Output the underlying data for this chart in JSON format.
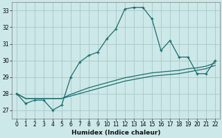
{
  "xlabel": "Humidex (Indice chaleur)",
  "background_color": "#cde8e8",
  "grid_color": "#aacccc",
  "line_color": "#1a6b6b",
  "xlim": [
    -0.5,
    22.5
  ],
  "ylim": [
    26.5,
    33.5
  ],
  "yticks": [
    27,
    28,
    29,
    30,
    31,
    32,
    33
  ],
  "xticks": [
    0,
    1,
    2,
    3,
    4,
    5,
    6,
    7,
    8,
    9,
    10,
    11,
    12,
    13,
    14,
    15,
    16,
    17,
    18,
    19,
    20,
    21,
    22
  ],
  "main_x": [
    0,
    1,
    2,
    3,
    4,
    5,
    6,
    7,
    8,
    9,
    10,
    11,
    12,
    13,
    14,
    15,
    16,
    17,
    18,
    19,
    20,
    21,
    22
  ],
  "main_y": [
    28.0,
    27.4,
    27.6,
    27.6,
    27.0,
    27.3,
    29.0,
    29.9,
    30.3,
    30.5,
    31.3,
    31.9,
    33.1,
    33.2,
    33.2,
    32.5,
    30.6,
    31.2,
    30.2,
    30.2,
    29.2,
    29.2,
    30.0
  ],
  "line2_x": [
    0,
    1,
    2,
    3,
    4,
    5,
    6,
    7,
    8,
    9,
    10,
    11,
    12,
    13,
    14,
    15,
    16,
    17,
    18,
    19,
    20,
    21,
    22
  ],
  "line2_y": [
    28.0,
    27.7,
    27.7,
    27.7,
    27.7,
    27.7,
    27.85,
    28.0,
    28.15,
    28.3,
    28.45,
    28.6,
    28.75,
    28.85,
    28.95,
    29.05,
    29.1,
    29.15,
    29.2,
    29.3,
    29.4,
    29.5,
    29.7
  ],
  "line3_x": [
    0,
    1,
    2,
    3,
    4,
    5,
    6,
    7,
    8,
    9,
    10,
    11,
    12,
    13,
    14,
    15,
    16,
    17,
    18,
    19,
    20,
    21,
    22
  ],
  "line3_y": [
    28.0,
    27.7,
    27.7,
    27.7,
    27.7,
    27.7,
    27.95,
    28.15,
    28.35,
    28.5,
    28.65,
    28.8,
    28.95,
    29.05,
    29.15,
    29.25,
    29.3,
    29.35,
    29.4,
    29.5,
    29.55,
    29.65,
    29.85
  ]
}
